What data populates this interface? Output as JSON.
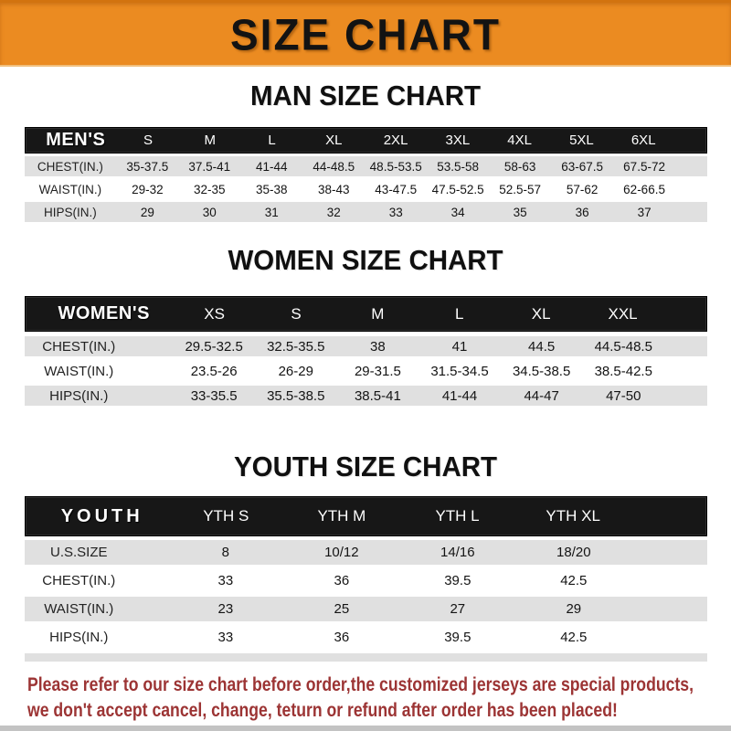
{
  "banner": {
    "title": "SIZE CHART"
  },
  "colors": {
    "banner_orange": "#EB8B21",
    "banner_top_edge": "#D2730F",
    "bar_black": "#171717",
    "row_gray": "#E0E0E0",
    "note_red": "#9C3434"
  },
  "man": {
    "heading": "MAN SIZE CHART",
    "corner": "MEN'S",
    "sizes": [
      "S",
      "M",
      "L",
      "XL",
      "2XL",
      "3XL",
      "4XL",
      "5XL",
      "6XL"
    ],
    "rows": [
      {
        "label": "CHEST(IN.)",
        "values": [
          "35-37.5",
          "37.5-41",
          "41-44",
          "44-48.5",
          "48.5-53.5",
          "53.5-58",
          "58-63",
          "63-67.5",
          "67.5-72"
        ]
      },
      {
        "label": "WAIST(IN.)",
        "values": [
          "29-32",
          "32-35",
          "35-38",
          "38-43",
          "43-47.5",
          "47.5-52.5",
          "52.5-57",
          "57-62",
          "62-66.5"
        ]
      },
      {
        "label": "HIPS(IN.)",
        "values": [
          "29",
          "30",
          "31",
          "32",
          "33",
          "34",
          "35",
          "36",
          "37"
        ]
      }
    ]
  },
  "women": {
    "heading": "WOMEN SIZE CHART",
    "corner": "WOMEN'S",
    "sizes": [
      "XS",
      "S",
      "M",
      "L",
      "XL",
      "XXL"
    ],
    "rows": [
      {
        "label": "CHEST(IN.)",
        "values": [
          "29.5-32.5",
          "32.5-35.5",
          "38",
          "41",
          "44.5",
          "44.5-48.5"
        ]
      },
      {
        "label": "WAIST(IN.)",
        "values": [
          "23.5-26",
          "26-29",
          "29-31.5",
          "31.5-34.5",
          "34.5-38.5",
          "38.5-42.5"
        ]
      },
      {
        "label": "HIPS(IN.)",
        "values": [
          "33-35.5",
          "35.5-38.5",
          "38.5-41",
          "41-44",
          "44-47",
          "47-50"
        ]
      }
    ]
  },
  "youth": {
    "heading": "YOUTH SIZE CHART",
    "corner": "YOUTH",
    "sizes": [
      "YTH S",
      "YTH M",
      "YTH L",
      "YTH XL"
    ],
    "rows": [
      {
        "label": "U.S.SIZE",
        "values": [
          "8",
          "10/12",
          "14/16",
          "18/20"
        ]
      },
      {
        "label": "CHEST(IN.)",
        "values": [
          "33",
          "36",
          "39.5",
          "42.5"
        ]
      },
      {
        "label": "WAIST(IN.)",
        "values": [
          "23",
          "25",
          "27",
          "29"
        ]
      },
      {
        "label": "HIPS(IN.)",
        "values": [
          "33",
          "36",
          "39.5",
          "42.5"
        ]
      }
    ]
  },
  "note": {
    "line1": "Please refer to our size chart before order,the customized jerseys are special products,",
    "line2": "we don't accept cancel, change, teturn or refund after order has been placed!"
  }
}
